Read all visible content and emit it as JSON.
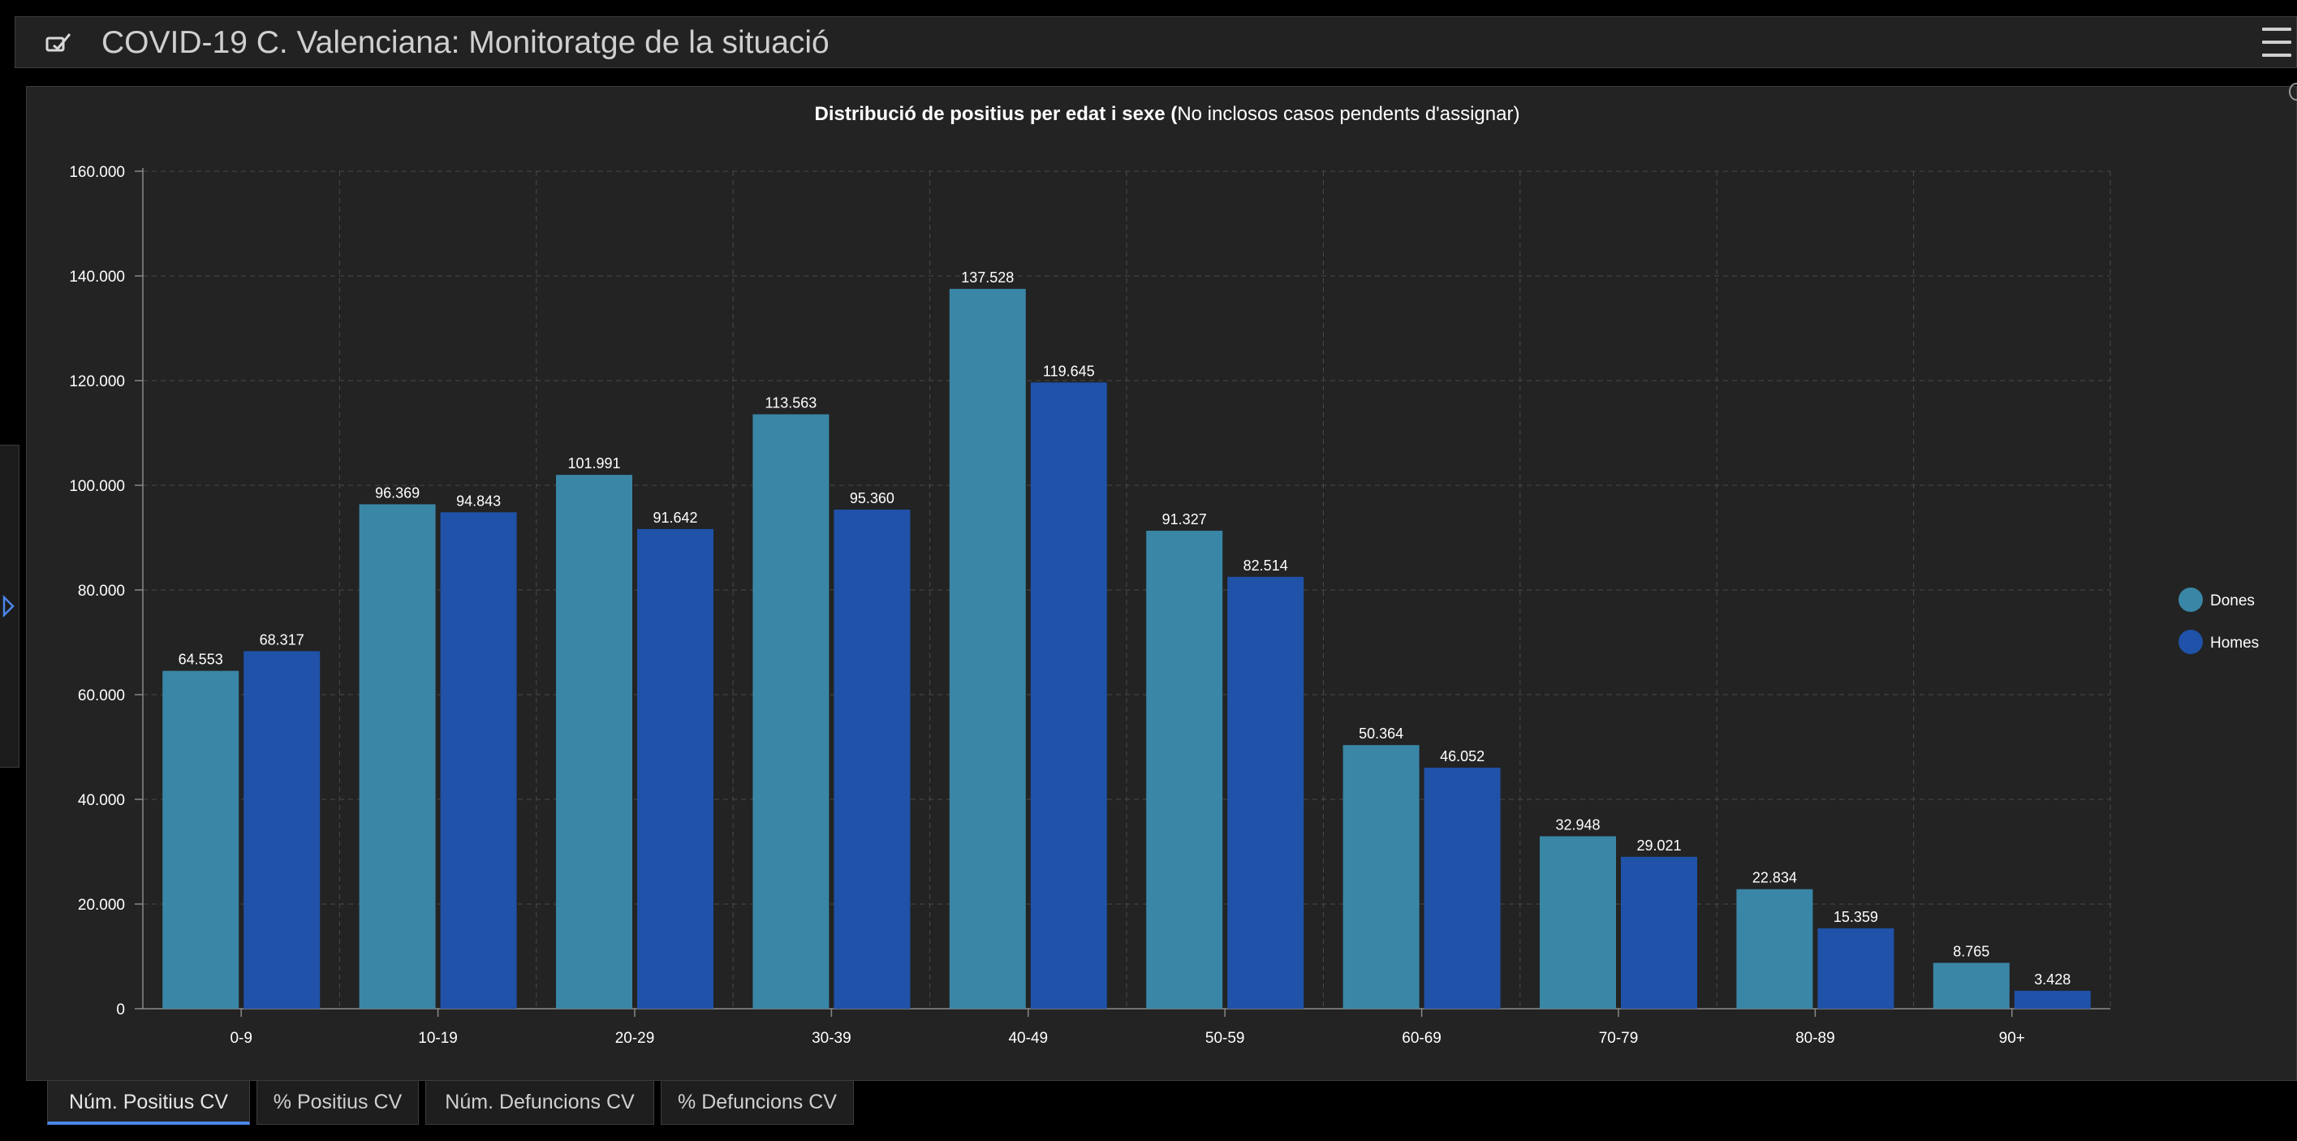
{
  "header": {
    "title": "COVID-19 C. Valenciana: Monitoratge de la situació",
    "icon": "logo-icon",
    "menu_icon": "menu-icon"
  },
  "tabs": [
    {
      "label": "Núm. Positius CV",
      "active": true
    },
    {
      "label": "% Positius CV",
      "active": false
    },
    {
      "label": "Núm. Defuncions CV",
      "active": false
    },
    {
      "label": "% Defuncions CV",
      "active": false
    }
  ],
  "chart_data": {
    "type": "bar",
    "title": "Distribució de positius per edat i sexe (",
    "subtitle": "No inclosos casos pendents d'assignar)",
    "xlabel": "",
    "ylabel": "",
    "ylim": [
      0,
      160000
    ],
    "yticks": [
      0,
      20000,
      40000,
      60000,
      80000,
      100000,
      120000,
      140000,
      160000
    ],
    "ytick_labels": [
      "0",
      "20.000",
      "40.000",
      "60.000",
      "80.000",
      "100.000",
      "120.000",
      "140.000",
      "160.000"
    ],
    "categories": [
      "0-9",
      "10-19",
      "20-29",
      "30-39",
      "40-49",
      "50-59",
      "60-69",
      "70-79",
      "80-89",
      "90+"
    ],
    "grid": true,
    "legend_position": "right",
    "series": [
      {
        "name": "Dones",
        "color": "#3a86a6",
        "values": [
          64553,
          96369,
          101991,
          113563,
          137528,
          91327,
          50364,
          32948,
          22834,
          8765
        ],
        "labels": [
          "64.553",
          "96.369",
          "101.991",
          "113.563",
          "137.528",
          "91.327",
          "50.364",
          "32.948",
          "22.834",
          "8.765"
        ]
      },
      {
        "name": "Homes",
        "color": "#1f52a8",
        "values": [
          68317,
          94843,
          91642,
          95360,
          119645,
          82514,
          46052,
          29021,
          15359,
          3428
        ],
        "labels": [
          "68.317",
          "94.843",
          "91.642",
          "95.360",
          "119.645",
          "82.514",
          "46.052",
          "29.021",
          "15.359",
          "3.428"
        ]
      }
    ]
  }
}
